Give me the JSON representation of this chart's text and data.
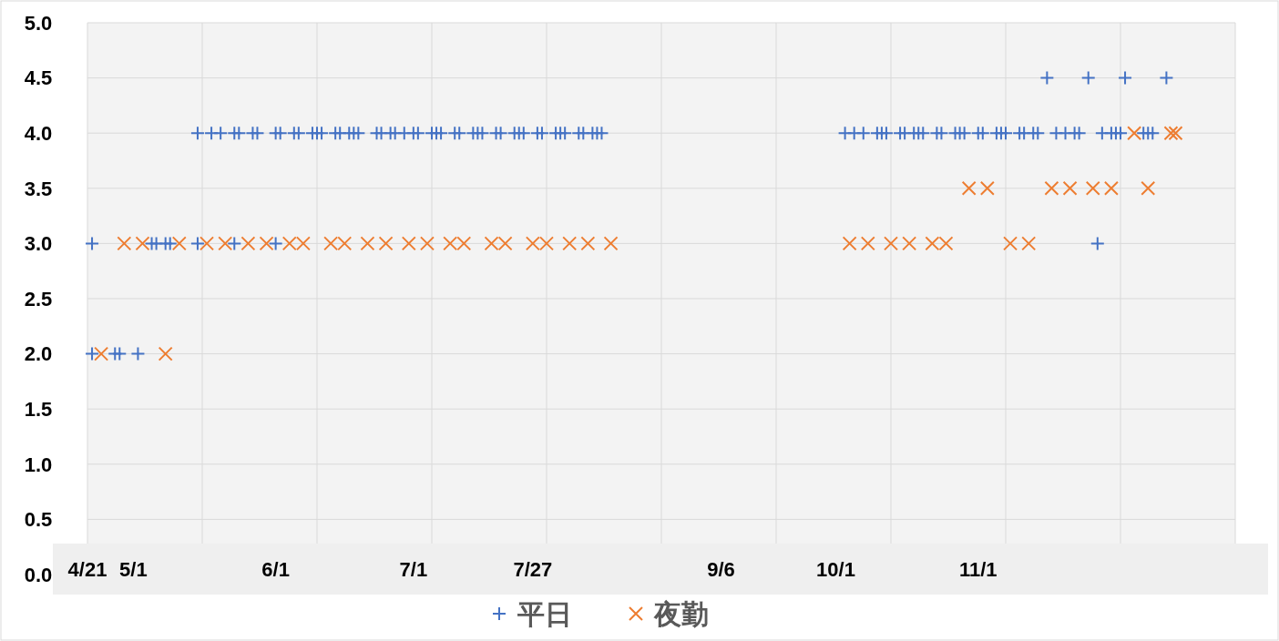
{
  "chart_data": {
    "type": "scatter",
    "xlim": [
      "--04-21",
      "--12-27"
    ],
    "ylim": [
      0,
      5
    ],
    "xticks": [
      {
        "value": "--04-21",
        "label": "4/21"
      },
      {
        "value": "--05-01",
        "label": "5/1"
      },
      {
        "value": "--06-01",
        "label": "6/1"
      },
      {
        "value": "--07-01",
        "label": "7/1"
      },
      {
        "value": "--07-27",
        "label": "7/27"
      },
      {
        "value": "--09-06",
        "label": "9/6"
      },
      {
        "value": "--10-01",
        "label": "10/1"
      },
      {
        "value": "--11-01",
        "label": "11/1"
      },
      {
        "value": "--05-16",
        "label": null
      },
      {
        "value": "--06-10",
        "label": null
      },
      {
        "value": "--07-05",
        "label": null
      },
      {
        "value": "--07-30",
        "label": null
      },
      {
        "value": "--08-24",
        "label": null
      },
      {
        "value": "--09-18",
        "label": null
      },
      {
        "value": "--10-13",
        "label": null
      },
      {
        "value": "--11-07",
        "label": null
      },
      {
        "value": "--12-02",
        "label": null
      },
      {
        "value": "--12-27",
        "label": null
      }
    ],
    "yticks": [
      {
        "value": 0,
        "label": "0.0"
      },
      {
        "value": 0.5,
        "label": "0.5"
      },
      {
        "value": 1,
        "label": "1.0"
      },
      {
        "value": 1.5,
        "label": "1.5"
      },
      {
        "value": 2,
        "label": "2.0"
      },
      {
        "value": 2.5,
        "label": "2.5"
      },
      {
        "value": 3,
        "label": "3.0"
      },
      {
        "value": 3.5,
        "label": "3.5"
      },
      {
        "value": 4,
        "label": "4.0"
      },
      {
        "value": 4.5,
        "label": "4.5"
      },
      {
        "value": 5,
        "label": "5.0"
      }
    ],
    "grid": true,
    "legend": "bottom",
    "series": [
      {
        "name": "平日",
        "color": "#4472c4",
        "marker": "plus",
        "x": [
          "--05-15",
          "--05-18",
          "--05-20",
          "--05-23",
          "--05-24",
          "--05-27",
          "--05-28",
          "--06-01",
          "--06-02",
          "--06-05",
          "--06-06",
          "--06-09",
          "--06-10",
          "--06-11",
          "--06-14",
          "--06-15",
          "--06-17",
          "--06-18",
          "--06-19",
          "--06-23",
          "--06-24",
          "--06-26",
          "--06-27",
          "--06-29",
          "--07-01",
          "--07-02",
          "--07-05",
          "--07-06",
          "--07-07",
          "--07-10",
          "--07-11",
          "--07-14",
          "--07-15",
          "--07-16",
          "--07-19",
          "--07-20",
          "--07-23",
          "--07-24",
          "--07-25",
          "--07-28",
          "--07-29",
          "--08-01",
          "--08-02",
          "--08-03",
          "--08-06",
          "--08-07",
          "--08-09",
          "--08-10",
          "--08-11",
          "--10-03",
          "--10-05",
          "--10-07",
          "--10-10",
          "--10-11",
          "--10-12",
          "--10-15",
          "--10-16",
          "--10-18",
          "--10-19",
          "--10-20",
          "--10-23",
          "--10-24",
          "--10-27",
          "--10-28",
          "--10-29",
          "--11-01",
          "--11-02",
          "--11-05",
          "--11-06",
          "--11-07",
          "--11-10",
          "--11-11",
          "--11-13",
          "--11-14",
          "--11-18",
          "--11-20",
          "--11-22",
          "--11-23",
          "--11-28",
          "--11-30",
          "--12-01",
          "--12-02",
          "--12-07",
          "--12-08",
          "--12-09",
          "--11-16",
          "--11-25",
          "--12-03",
          "--12-12",
          "--04-22",
          "--05-05",
          "--05-06",
          "--05-08",
          "--05-09",
          "--05-15",
          "--05-23",
          "--06-01",
          "--11-27",
          "--04-22",
          "--04-27",
          "--04-28",
          "--05-02"
        ],
        "values": [
          4,
          4,
          4,
          4,
          4,
          4,
          4,
          4,
          4,
          4,
          4,
          4,
          4,
          4,
          4,
          4,
          4,
          4,
          4,
          4,
          4,
          4,
          4,
          4,
          4,
          4,
          4,
          4,
          4,
          4,
          4,
          4,
          4,
          4,
          4,
          4,
          4,
          4,
          4,
          4,
          4,
          4,
          4,
          4,
          4,
          4,
          4,
          4,
          4,
          4,
          4,
          4,
          4,
          4,
          4,
          4,
          4,
          4,
          4,
          4,
          4,
          4,
          4,
          4,
          4,
          4,
          4,
          4,
          4,
          4,
          4,
          4,
          4,
          4,
          4,
          4,
          4,
          4,
          4,
          4,
          4,
          4,
          4,
          4,
          4,
          4.5,
          4.5,
          4.5,
          4.5,
          3,
          3,
          3,
          3,
          3,
          3,
          3,
          3,
          3,
          2,
          2,
          2,
          2
        ]
      },
      {
        "name": "夜勤",
        "color": "#ed7d31",
        "marker": "cross",
        "x": [
          "--04-29",
          "--05-03",
          "--05-11",
          "--05-17",
          "--05-21",
          "--05-26",
          "--05-30",
          "--06-04",
          "--06-07",
          "--06-13",
          "--06-16",
          "--06-21",
          "--06-25",
          "--06-30",
          "--07-04",
          "--07-09",
          "--07-12",
          "--07-18",
          "--07-21",
          "--07-27",
          "--07-30",
          "--08-04",
          "--08-08",
          "--08-13",
          "--10-04",
          "--10-08",
          "--10-13",
          "--10-17",
          "--10-22",
          "--10-25",
          "--11-08",
          "--11-12",
          "--10-30",
          "--11-03",
          "--11-17",
          "--11-21",
          "--11-26",
          "--11-30",
          "--12-08",
          "--12-05",
          "--12-13",
          "--12-14",
          "--04-24",
          "--05-08"
        ],
        "values": [
          3,
          3,
          3,
          3,
          3,
          3,
          3,
          3,
          3,
          3,
          3,
          3,
          3,
          3,
          3,
          3,
          3,
          3,
          3,
          3,
          3,
          3,
          3,
          3,
          3,
          3,
          3,
          3,
          3,
          3,
          3,
          3,
          3.5,
          3.5,
          3.5,
          3.5,
          3.5,
          3.5,
          3.5,
          4,
          4,
          4,
          2,
          2
        ]
      }
    ]
  }
}
